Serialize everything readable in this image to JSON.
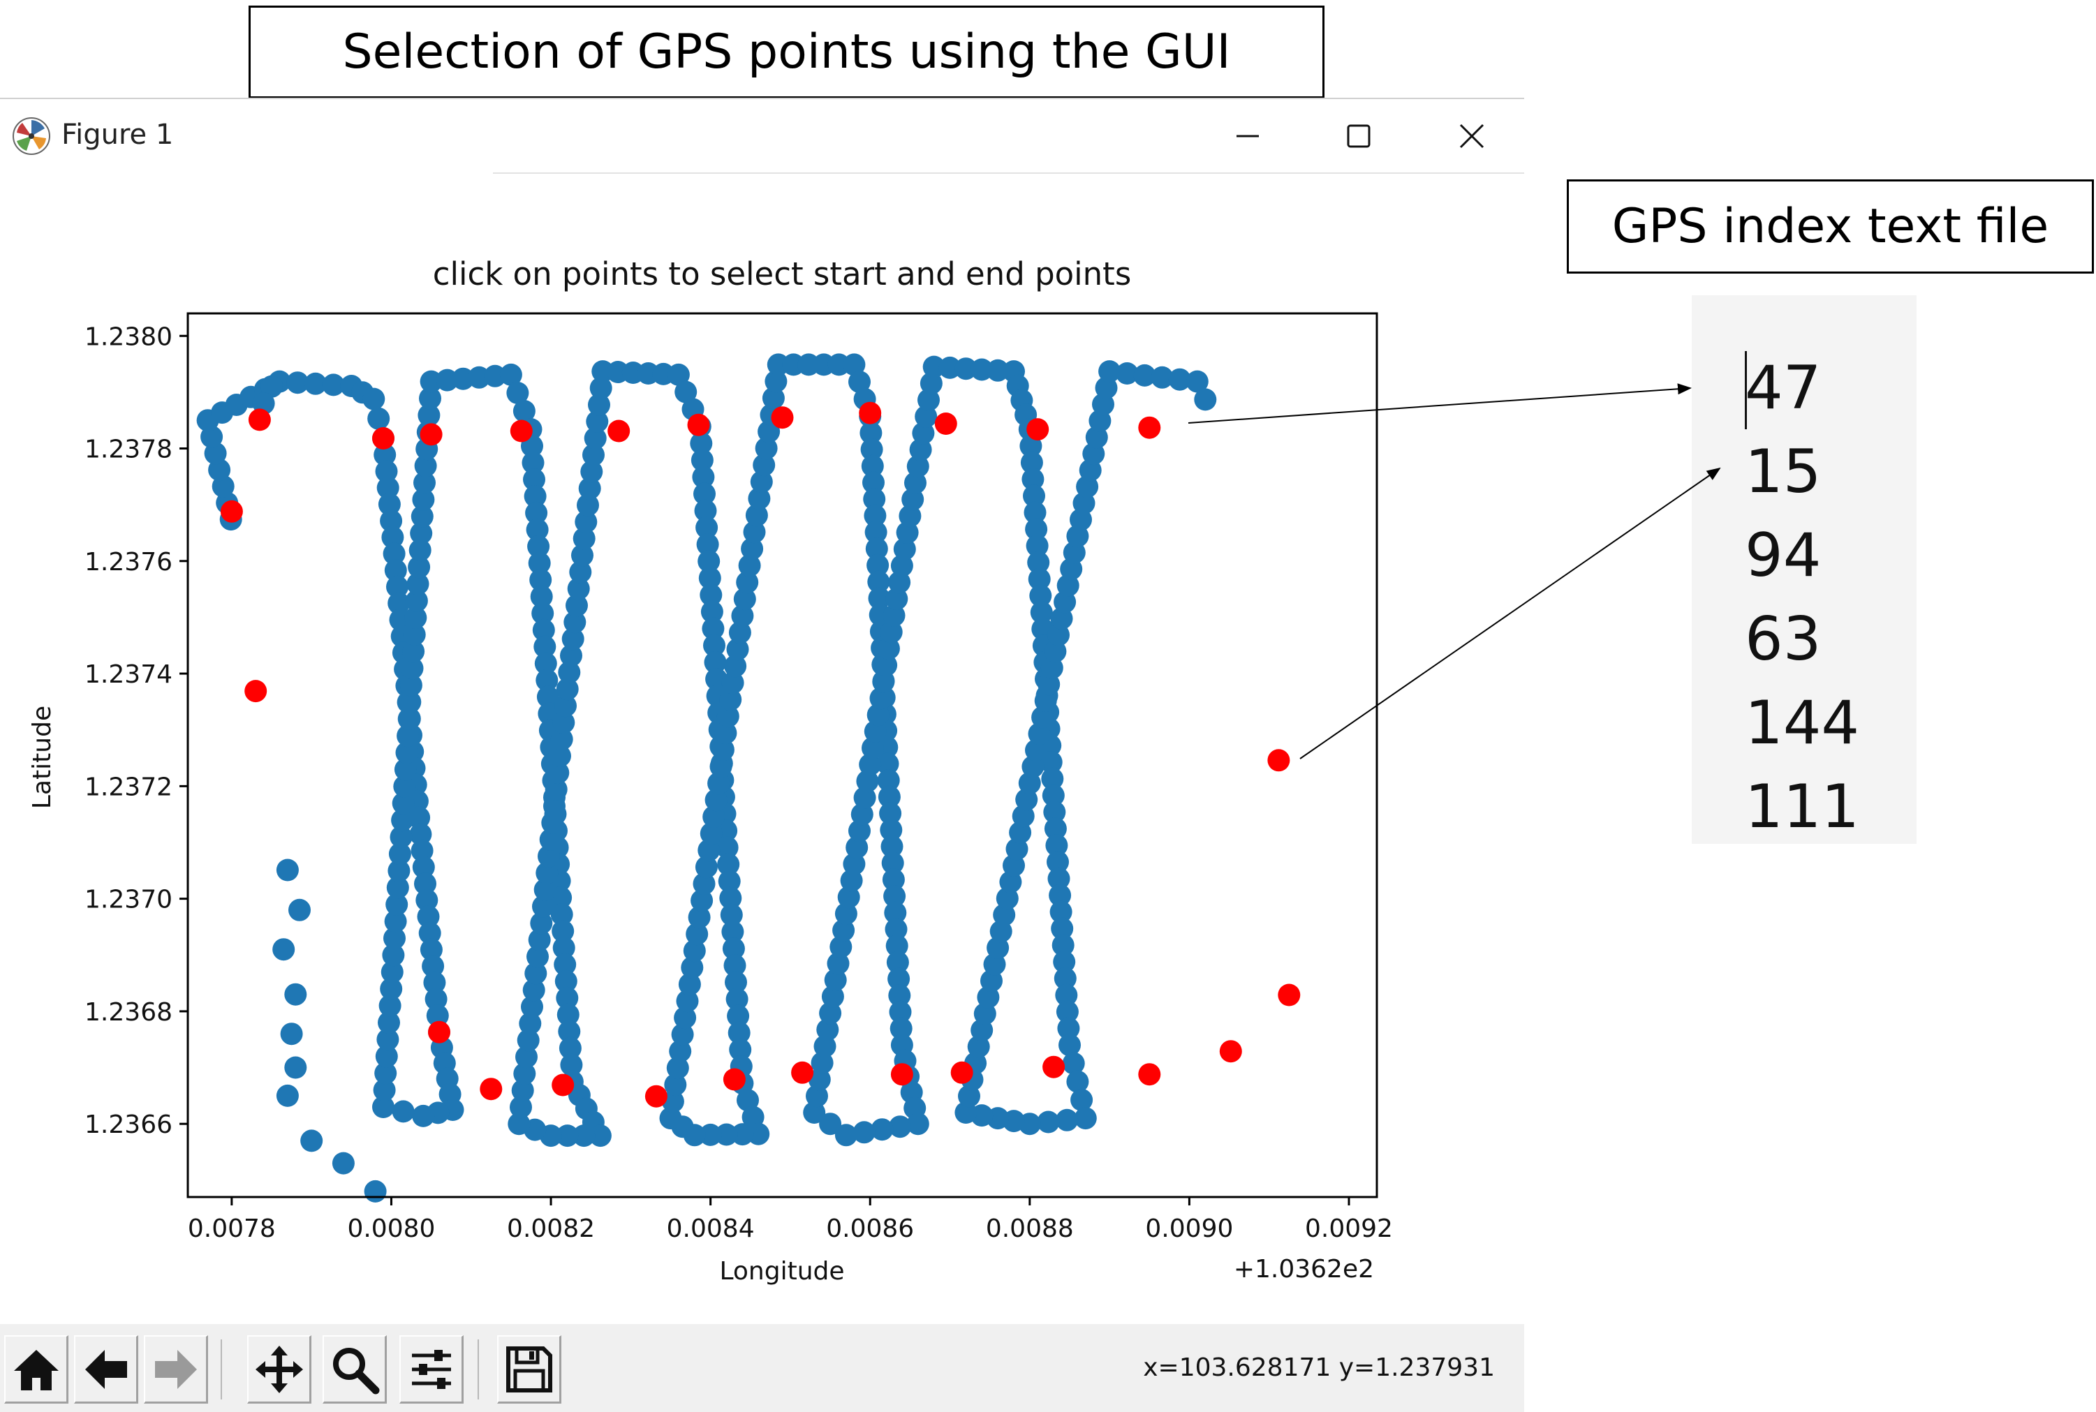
{
  "annotations": {
    "top_label": "Selection of GPS points using the GUI",
    "side_label": "GPS index text file"
  },
  "window": {
    "title": "Figure 1",
    "icons": [
      "matplotlib-logo-icon",
      "minimize-icon",
      "maximize-icon",
      "close-icon"
    ]
  },
  "toolbar": {
    "buttons": [
      "home-icon",
      "back-arrow-icon",
      "forward-arrow-icon",
      "pan-icon",
      "zoom-icon",
      "configure-subplots-icon",
      "save-icon"
    ],
    "coords": "x=103.628171 y=1.237931"
  },
  "index_file": {
    "values": [
      "47",
      "15",
      "94",
      "63",
      "144",
      "111"
    ]
  },
  "chart_data": {
    "type": "scatter",
    "title": "click on points to select start and end points",
    "xlabel": "Longitude",
    "ylabel": "Latitude",
    "offset_label": "+1.0362e2",
    "x_ticks": [
      "0.0078",
      "0.0080",
      "0.0082",
      "0.0084",
      "0.0086",
      "0.0088",
      "0.0090",
      "0.0092"
    ],
    "y_ticks": [
      "1.2366",
      "1.2368",
      "1.2370",
      "1.2372",
      "1.2374",
      "1.2376",
      "1.2378",
      "1.2380"
    ],
    "x_tick_values": [
      0.0078,
      0.008,
      0.0082,
      0.0084,
      0.0086,
      0.0088,
      0.009,
      0.0092
    ],
    "y_tick_values": [
      1.2366,
      1.2368,
      1.237,
      1.2372,
      1.2374,
      1.2376,
      1.2378,
      1.238
    ],
    "xlim": [
      0.007745,
      0.009235
    ],
    "ylim": [
      1.23647,
      1.23804
    ],
    "colors": {
      "track": "#1f77b4",
      "selected": "#ff0000"
    },
    "track_path": [
      [
        0.007799,
        1.237674
      ],
      [
        0.00777,
        1.23785
      ],
      [
        0.00786,
        1.237919
      ],
      [
        0.00795,
        1.237911
      ],
      [
        0.007978,
        1.237888
      ],
      [
        0.00799,
        1.237818
      ],
      [
        0.00806,
        1.236763
      ],
      [
        0.008077,
        1.236625
      ],
      [
        0.00804,
        1.236614
      ],
      [
        0.00799,
        1.23663
      ],
      [
        0.00805,
        1.237919
      ],
      [
        0.00815,
        1.237931
      ],
      [
        0.008175,
        1.237834
      ],
      [
        0.008227,
        1.236675
      ],
      [
        0.008262,
        1.236579
      ],
      [
        0.0082,
        1.236579
      ],
      [
        0.00816,
        1.2366
      ],
      [
        0.008265,
        1.237937
      ],
      [
        0.00836,
        1.237931
      ],
      [
        0.008387,
        1.237839
      ],
      [
        0.00844,
        1.236672
      ],
      [
        0.00846,
        1.236582
      ],
      [
        0.00838,
        1.23658
      ],
      [
        0.00835,
        1.23661
      ],
      [
        0.008485,
        1.237949
      ],
      [
        0.00858,
        1.237949
      ],
      [
        0.0086,
        1.237857
      ],
      [
        0.00864,
        1.23674
      ],
      [
        0.00866,
        1.2366
      ],
      [
        0.00857,
        1.23658
      ],
      [
        0.00853,
        1.23662
      ],
      [
        0.00868,
        1.237945
      ],
      [
        0.00878,
        1.237937
      ],
      [
        0.0088,
        1.237834
      ],
      [
        0.00885,
        1.23674
      ],
      [
        0.00887,
        1.23661
      ],
      [
        0.0088,
        1.2366
      ],
      [
        0.00872,
        1.23662
      ],
      [
        0.0089,
        1.237937
      ],
      [
        0.00901,
        1.237919
      ],
      [
        0.00902,
        1.237887
      ]
    ],
    "scatter_points": [
      [
        0.00785,
        1.23791
      ],
      [
        0.00784,
        1.23788
      ],
      [
        0.00787,
        1.237051
      ],
      [
        0.007885,
        1.23698
      ],
      [
        0.007865,
        1.23691
      ],
      [
        0.00788,
        1.23683
      ],
      [
        0.007875,
        1.23676
      ],
      [
        0.00788,
        1.2367
      ],
      [
        0.00787,
        1.23665
      ],
      [
        0.0079,
        1.23657
      ],
      [
        0.00794,
        1.23653
      ],
      [
        0.00798,
        1.23648
      ]
    ],
    "selected_points": [
      [
        0.0078,
        1.237688
      ],
      [
        0.007835,
        1.237851
      ],
      [
        0.00783,
        1.237369
      ],
      [
        0.00799,
        1.237818
      ],
      [
        0.00805,
        1.237825
      ],
      [
        0.00806,
        1.236763
      ],
      [
        0.008163,
        1.237831
      ],
      [
        0.008125,
        1.236662
      ],
      [
        0.008215,
        1.236669
      ],
      [
        0.008285,
        1.237831
      ],
      [
        0.008332,
        1.236649
      ],
      [
        0.008385,
        1.237842
      ],
      [
        0.00843,
        1.236679
      ],
      [
        0.00849,
        1.237855
      ],
      [
        0.008515,
        1.236691
      ],
      [
        0.0086,
        1.237863
      ],
      [
        0.00864,
        1.236688
      ],
      [
        0.008695,
        1.237844
      ],
      [
        0.008715,
        1.236691
      ],
      [
        0.00881,
        1.237834
      ],
      [
        0.00883,
        1.236701
      ],
      [
        0.00895,
        1.237837
      ],
      [
        0.00895,
        1.236688
      ],
      [
        0.009052,
        1.236729
      ],
      [
        0.009112,
        1.237246
      ],
      [
        0.009125,
        1.236829
      ]
    ]
  }
}
